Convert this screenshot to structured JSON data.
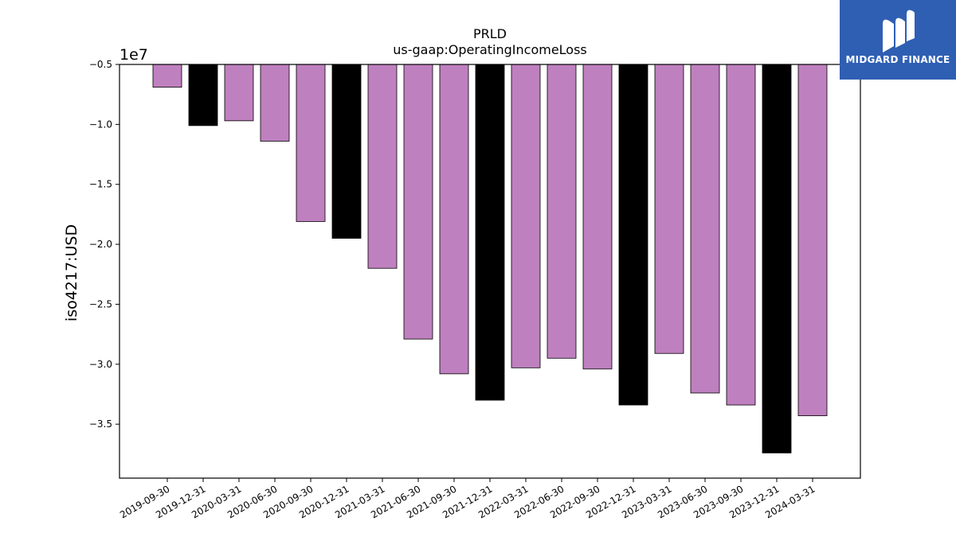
{
  "chart_data": {
    "type": "bar",
    "title": "PRLD",
    "subtitle": "us-gaap:OperatingIncomeLoss",
    "ylabel": "iso4217:USD",
    "xlabel": "",
    "offset_label": "1e7",
    "ylim": [
      -39500000,
      -5000000
    ],
    "yticks": [
      -5000000,
      -10000000,
      -15000000,
      -20000000,
      -25000000,
      -30000000,
      -35000000
    ],
    "ytick_labels": [
      "−0.5",
      "−1.0",
      "−1.5",
      "−2.0",
      "−2.5",
      "−3.0",
      "−3.5"
    ],
    "categories": [
      "2019-09-30",
      "2019-12-31",
      "2020-03-31",
      "2020-06-30",
      "2020-09-30",
      "2020-12-31",
      "2021-03-31",
      "2021-06-30",
      "2021-09-30",
      "2021-12-31",
      "2022-03-31",
      "2022-06-30",
      "2022-09-30",
      "2022-12-31",
      "2023-03-31",
      "2023-06-30",
      "2023-09-30",
      "2023-12-31",
      "2024-03-31"
    ],
    "values": [
      -6900000,
      -10100000,
      -9700000,
      -11400000,
      -18100000,
      -19500000,
      -22000000,
      -27900000,
      -30800000,
      -33000000,
      -30300000,
      -29500000,
      -30400000,
      -33400000,
      -29100000,
      -32400000,
      -33400000,
      -37400000,
      -34300000
    ],
    "bar_colors": [
      "#bf80bf",
      "#000000",
      "#bf80bf",
      "#bf80bf",
      "#bf80bf",
      "#000000",
      "#bf80bf",
      "#bf80bf",
      "#bf80bf",
      "#000000",
      "#bf80bf",
      "#bf80bf",
      "#bf80bf",
      "#000000",
      "#bf80bf",
      "#bf80bf",
      "#bf80bf",
      "#000000",
      "#bf80bf"
    ],
    "grid": false,
    "legend": "none"
  },
  "logo": {
    "text": "MIDGARD FINANCE",
    "background": "#2f5fb3"
  }
}
